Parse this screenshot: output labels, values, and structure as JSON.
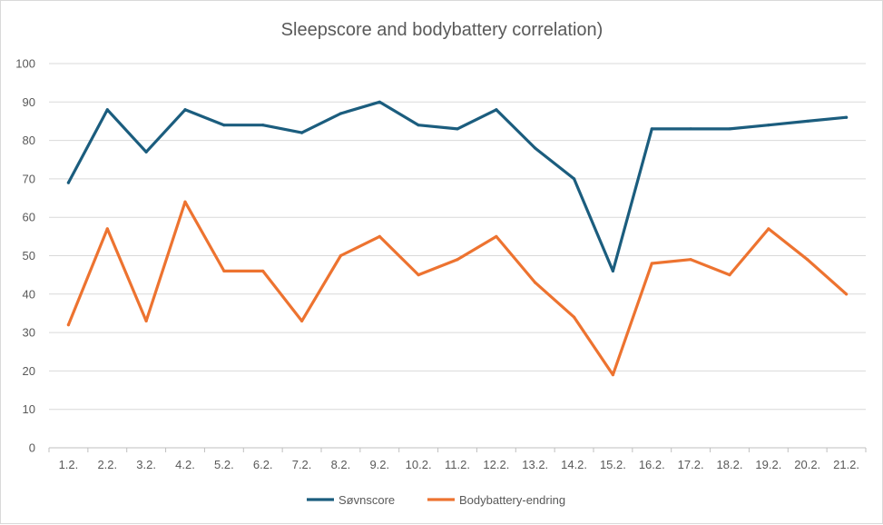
{
  "chart_data": {
    "type": "line",
    "title": "Sleepscore and bodybattery correlation)",
    "xlabel": "",
    "ylabel": "",
    "categories": [
      "1.2.",
      "2.2.",
      "3.2.",
      "4.2.",
      "5.2.",
      "6.2.",
      "7.2.",
      "8.2.",
      "9.2.",
      "10.2.",
      "11.2.",
      "12.2.",
      "13.2.",
      "14.2.",
      "15.2.",
      "16.2.",
      "17.2.",
      "18.2.",
      "19.2.",
      "20.2.",
      "21.2."
    ],
    "ylim": [
      0,
      100
    ],
    "yticks": [
      0,
      10,
      20,
      30,
      40,
      50,
      60,
      70,
      80,
      90,
      100
    ],
    "grid": true,
    "legend_position": "bottom",
    "series": [
      {
        "name": "Søvnscore",
        "color": "#1b5d7e",
        "values": [
          69,
          88,
          77,
          88,
          84,
          84,
          82,
          87,
          90,
          84,
          83,
          88,
          78,
          70,
          46,
          83,
          83,
          83,
          84,
          85,
          86
        ]
      },
      {
        "name": "Bodybattery-endring",
        "color": "#ed7330",
        "values": [
          32,
          57,
          33,
          64,
          46,
          46,
          33,
          50,
          55,
          45,
          49,
          55,
          43,
          34,
          19,
          48,
          49,
          45,
          57,
          49,
          40
        ]
      }
    ]
  }
}
